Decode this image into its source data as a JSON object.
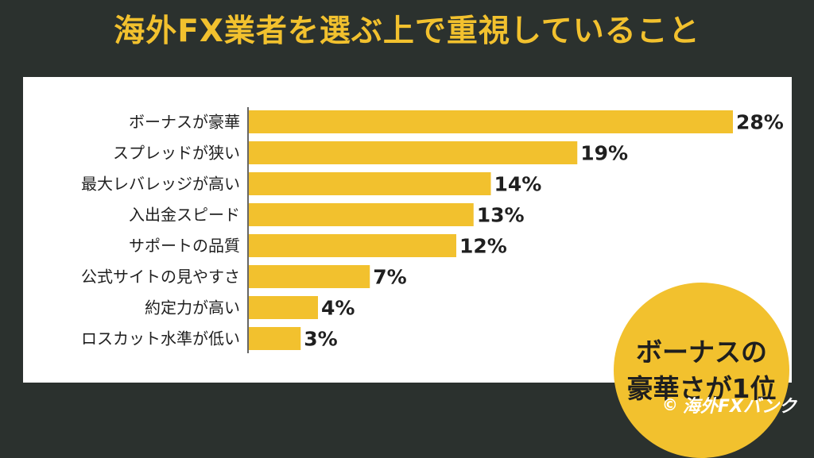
{
  "header": {
    "title": "海外FX業者を選ぶ上で重視していること"
  },
  "badge": {
    "line1": "ボーナスの",
    "line2": "豪華さが1位"
  },
  "credit": {
    "symbol": "©",
    "text": "海外FXバンク"
  },
  "colors": {
    "background": "#2b312e",
    "accent": "#f2c12e",
    "panel": "#ffffff",
    "text": "#1f1f1f"
  },
  "chart_data": {
    "type": "bar",
    "orientation": "horizontal",
    "categories": [
      "ボーナスが豪華",
      "スプレッドが狭い",
      "最大レバレッジが高い",
      "入出金スピード",
      "サポートの品質",
      "公式サイトの見やすさ",
      "約定力が高い",
      "ロスカット水準が低い"
    ],
    "values": [
      28,
      19,
      14,
      13,
      12,
      7,
      4,
      3
    ],
    "labels": [
      "28%",
      "19%",
      "14%",
      "13%",
      "12%",
      "7%",
      "4%",
      "3%"
    ],
    "unit": "%",
    "xlim": [
      0,
      28
    ],
    "grid": false,
    "color": "#f2c12e"
  }
}
